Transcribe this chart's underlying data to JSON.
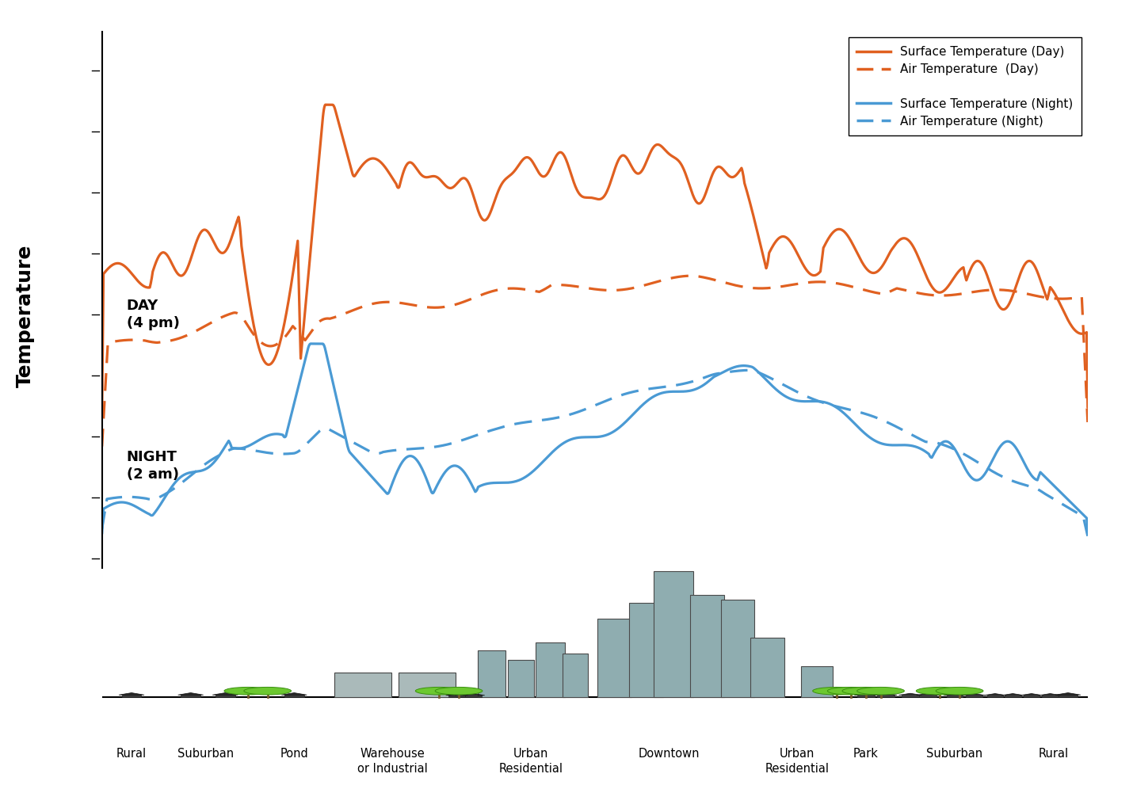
{
  "ylabel": "Temperature",
  "orange_color": "#E06020",
  "blue_color": "#4A9AD4",
  "day_label": "DAY\n(4 pm)",
  "night_label": "NIGHT\n(2 am)",
  "building_color": "#8FADB0",
  "building_outline": "#4A4A4A",
  "legend_entries": [
    "Surface Temperature (Day)",
    "Air Temperature  (Day)",
    "",
    "Surface Temperature (Night)",
    "Air Temperature (Night)"
  ],
  "cat_labels": [
    [
      "Rural",
      0.03
    ],
    [
      "Suburban",
      0.105
    ],
    [
      "Pond",
      0.195
    ],
    [
      "Warehouse\nor Industrial",
      0.295
    ],
    [
      "Urban\nResidential",
      0.435
    ],
    [
      "Downtown",
      0.575
    ],
    [
      "Urban\nResidential",
      0.705
    ],
    [
      "Park",
      0.775
    ],
    [
      "Suburban",
      0.865
    ],
    [
      "Rural",
      0.965
    ]
  ]
}
